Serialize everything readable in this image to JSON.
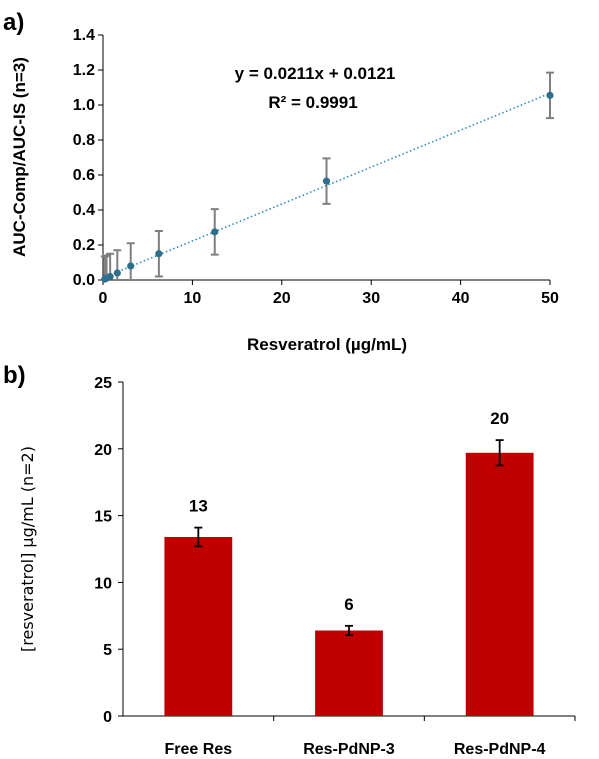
{
  "panels": {
    "a": "a)",
    "b": "b)"
  },
  "colors": {
    "marker": "#2e6f8e",
    "trendline": "#2e8bc0",
    "errorbar_a": "#7f7f7f",
    "bar": "#c00000",
    "errorbar_b": "#000000"
  },
  "chart_data": [
    {
      "type": "scatter",
      "panel": "a)",
      "xlabel": "Resveratrol (µg/mL)",
      "ylabel": "AUC-Comp/AUC-IS (n=3)",
      "xlim": [
        0,
        50
      ],
      "ylim": [
        0,
        1.4
      ],
      "xticks": [
        "0",
        "10",
        "20",
        "30",
        "40",
        "50"
      ],
      "yticks": [
        "0.0",
        "0.2",
        "0.4",
        "0.6",
        "0.8",
        "1.0",
        "1.2",
        "1.4"
      ],
      "points": [
        {
          "x": 0.2,
          "y": 0.005,
          "err": 0.13
        },
        {
          "x": 0.4,
          "y": 0.01,
          "err": 0.13
        },
        {
          "x": 0.8,
          "y": 0.02,
          "err": 0.13
        },
        {
          "x": 1.6,
          "y": 0.04,
          "err": 0.13
        },
        {
          "x": 3.1,
          "y": 0.08,
          "err": 0.13
        },
        {
          "x": 6.25,
          "y": 0.15,
          "err": 0.13
        },
        {
          "x": 12.5,
          "y": 0.275,
          "err": 0.13
        },
        {
          "x": 25,
          "y": 0.565,
          "err": 0.13
        },
        {
          "x": 50,
          "y": 1.055,
          "err": 0.13
        }
      ],
      "trendline": {
        "slope": 0.0211,
        "intercept": 0.0121,
        "style": "dotted"
      },
      "equation": "y = 0.0211x + 0.0121",
      "r_squared": "R² = 0.9991",
      "grid": false
    },
    {
      "type": "bar",
      "panel": "b)",
      "ylabel": "[resveratrol] µg/mL (n=2)",
      "ylim": [
        0,
        25
      ],
      "yticks": [
        "0",
        "5",
        "10",
        "15",
        "20",
        "25"
      ],
      "categories": [
        "Free Res",
        "Res-PdNP-3",
        "Res-PdNP-4"
      ],
      "values": [
        13.4,
        6.4,
        19.7
      ],
      "errors": [
        0.7,
        0.35,
        0.95
      ],
      "data_labels": [
        "13",
        "6",
        "20"
      ],
      "grid": false
    }
  ]
}
